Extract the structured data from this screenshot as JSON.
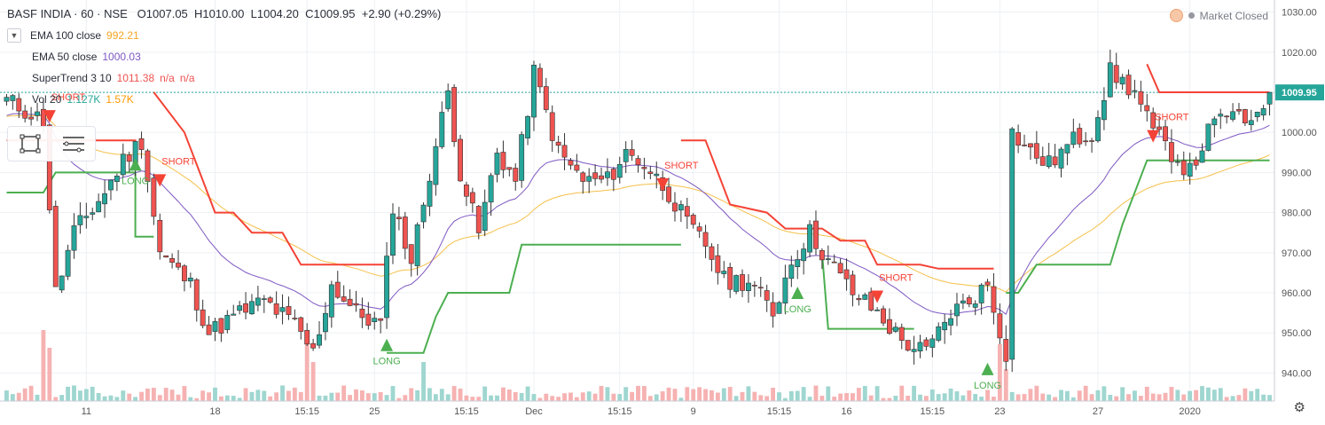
{
  "header": {
    "symbol": "BASF INDIA · 60 · NSE",
    "open": "O1007.05",
    "high": "H1010.00",
    "low": "L1004.20",
    "close": "C1009.95",
    "change": "+2.90 (+0.29%)"
  },
  "indicators": {
    "ema100_label": "EMA 100 close",
    "ema100_value": "992.21",
    "ema50_label": "EMA 50 close",
    "ema50_value": "1000.03",
    "supertrend_label": "SuperTrend 3 10",
    "supertrend_value": "1011.38",
    "supertrend_na1": "n/a",
    "supertrend_na2": "n/a",
    "vol_label": "Vol 20",
    "vol_value1": "1.127K",
    "vol_value2": "1.57K"
  },
  "status": {
    "market": "Market Closed"
  },
  "icons": {
    "settings": "gear-icon",
    "collapse": "chevron-down-icon",
    "rect": "rectangle-tool-icon",
    "lines": "lines-tool-icon"
  },
  "colors": {
    "up": "#26a69a",
    "down": "#ef5350",
    "ema100": "#f5c04a",
    "ema50": "#7e57c2",
    "st_up": "#4caf50",
    "st_down": "#f44336",
    "vol_up": "#9fd6d0",
    "vol_down": "#f6b2b2",
    "price_tag": "#26a69a"
  },
  "chart_data": {
    "type": "candlestick",
    "title": "BASF INDIA · 60 · NSE",
    "ylim": [
      933,
      1033
    ],
    "y_ticks": [
      940,
      950,
      960,
      970,
      980,
      990,
      1000,
      1010,
      1020,
      1030
    ],
    "y_tick_labels": [
      "940.00",
      "950.00",
      "960.00",
      "970.00",
      "980.00",
      "990.00",
      "1000.00",
      "1010.00",
      "1020.00",
      "1030.00"
    ],
    "last_price": 1009.95,
    "last_price_label": "1009.95",
    "x_ticks": [
      {
        "i": 13,
        "label": "11"
      },
      {
        "i": 34,
        "label": "18"
      },
      {
        "i": 49,
        "label": "15:15"
      },
      {
        "i": 60,
        "label": "25"
      },
      {
        "i": 75,
        "label": "15:15"
      },
      {
        "i": 86,
        "label": "Dec"
      },
      {
        "i": 100,
        "label": "15:15"
      },
      {
        "i": 112,
        "label": "9"
      },
      {
        "i": 126,
        "label": "15:15"
      },
      {
        "i": 137,
        "label": "16"
      },
      {
        "i": 151,
        "label": "15:15"
      },
      {
        "i": 162,
        "label": "23"
      },
      {
        "i": 178,
        "label": "27"
      },
      {
        "i": 193,
        "label": "2020"
      }
    ],
    "n": 207,
    "anchors": [
      [
        0,
        1008
      ],
      [
        6,
        1003
      ],
      [
        8,
        960
      ],
      [
        11,
        975
      ],
      [
        16,
        985
      ],
      [
        19,
        993
      ],
      [
        22,
        998
      ],
      [
        25,
        970
      ],
      [
        30,
        962
      ],
      [
        33,
        950
      ],
      [
        38,
        955
      ],
      [
        42,
        958
      ],
      [
        47,
        952
      ],
      [
        50,
        945
      ],
      [
        53,
        962
      ],
      [
        57,
        955
      ],
      [
        61,
        952
      ],
      [
        63,
        982
      ],
      [
        66,
        968
      ],
      [
        69,
        990
      ],
      [
        72,
        1010
      ],
      [
        74,
        990
      ],
      [
        77,
        975
      ],
      [
        80,
        995
      ],
      [
        83,
        988
      ],
      [
        86,
        1015
      ],
      [
        90,
        995
      ],
      [
        94,
        988
      ],
      [
        98,
        988
      ],
      [
        101,
        995
      ],
      [
        104,
        992
      ],
      [
        108,
        985
      ],
      [
        111,
        977
      ],
      [
        114,
        972
      ],
      [
        117,
        963
      ],
      [
        121,
        963
      ],
      [
        125,
        955
      ],
      [
        128,
        968
      ],
      [
        131,
        975
      ],
      [
        134,
        968
      ],
      [
        138,
        960
      ],
      [
        142,
        955
      ],
      [
        146,
        948
      ],
      [
        150,
        945
      ],
      [
        154,
        955
      ],
      [
        157,
        958
      ],
      [
        160,
        962
      ],
      [
        163,
        945
      ],
      [
        164,
        1000
      ],
      [
        167,
        995
      ],
      [
        170,
        992
      ],
      [
        174,
        998
      ],
      [
        177,
        1000
      ],
      [
        180,
        1015
      ],
      [
        184,
        1010
      ],
      [
        187,
        1000
      ],
      [
        190,
        995
      ],
      [
        193,
        990
      ],
      [
        196,
        1000
      ],
      [
        199,
        1005
      ],
      [
        202,
        1002
      ],
      [
        206,
        1009.95
      ]
    ],
    "supertrend": {
      "label": "SuperTrend 3 10",
      "down_segments": [
        [
          [
            0,
            998
          ],
          [
            21,
            998
          ],
          [
            21,
            992
          ]
        ],
        [
          [
            24,
            1010
          ],
          [
            29,
            1000
          ],
          [
            32,
            988
          ],
          [
            34,
            980
          ],
          [
            37,
            980
          ],
          [
            40,
            975
          ],
          [
            45,
            975
          ],
          [
            48,
            967
          ],
          [
            62,
            967
          ]
        ],
        [
          [
            110,
            998
          ],
          [
            114,
            998
          ],
          [
            116,
            990
          ],
          [
            118,
            982
          ],
          [
            124,
            980
          ],
          [
            127,
            976
          ],
          [
            133,
            976
          ],
          [
            136,
            973
          ],
          [
            140,
            973
          ],
          [
            142,
            967
          ],
          [
            149,
            967
          ],
          [
            152,
            966
          ],
          [
            161,
            966
          ]
        ],
        [
          [
            186,
            1017
          ],
          [
            188,
            1010
          ],
          [
            206,
            1010
          ]
        ]
      ],
      "up_segments": [
        [
          [
            0,
            985
          ],
          [
            6,
            985
          ],
          [
            8,
            990
          ],
          [
            21,
            990
          ],
          [
            21,
            974
          ],
          [
            24,
            974
          ]
        ],
        [
          [
            62,
            945
          ],
          [
            68,
            945
          ],
          [
            70,
            954
          ],
          [
            72,
            960
          ],
          [
            82,
            960
          ],
          [
            84,
            972
          ],
          [
            110,
            972
          ]
        ],
        [
          [
            133,
            970
          ],
          [
            134,
            951
          ],
          [
            148,
            951
          ]
        ],
        [
          [
            163,
            960
          ],
          [
            165,
            960
          ],
          [
            168,
            967
          ],
          [
            180,
            967
          ],
          [
            182,
            977
          ],
          [
            186,
            993
          ],
          [
            206,
            993
          ]
        ]
      ]
    },
    "signals": [
      {
        "type": "short",
        "label": "SHORT",
        "i": 7,
        "price": 1004
      },
      {
        "type": "long",
        "label": "LONG",
        "i": 21,
        "price": 992
      },
      {
        "type": "short",
        "label": "SHORT",
        "i": 25,
        "price": 988
      },
      {
        "type": "long",
        "label": "LONG",
        "i": 62,
        "price": 947
      },
      {
        "type": "short",
        "label": "SHORT",
        "i": 107,
        "price": 987
      },
      {
        "type": "long",
        "label": "LONG",
        "i": 129,
        "price": 960
      },
      {
        "type": "short",
        "label": "SHORT",
        "i": 142,
        "price": 959
      },
      {
        "type": "long",
        "label": "LONG",
        "i": 160,
        "price": 941
      },
      {
        "type": "short",
        "label": "SHORT",
        "i": 187,
        "price": 999
      }
    ],
    "volume_spikes": [
      {
        "i": 6,
        "h": 1.0
      },
      {
        "i": 7,
        "h": 0.75
      },
      {
        "i": 49,
        "h": 0.85
      },
      {
        "i": 50,
        "h": 0.55
      },
      {
        "i": 68,
        "h": 0.55
      },
      {
        "i": 162,
        "h": 0.8
      },
      {
        "i": 163,
        "h": 0.45
      }
    ]
  }
}
